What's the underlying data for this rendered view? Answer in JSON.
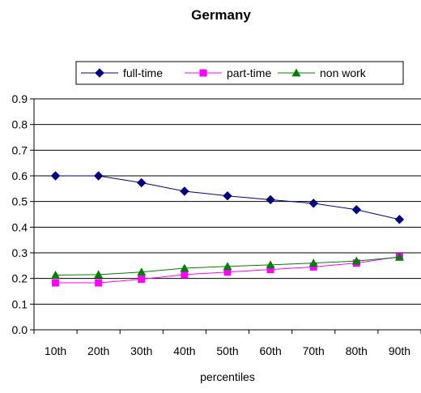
{
  "chart_data": {
    "type": "line",
    "title": "Germany",
    "xlabel": "percentiles",
    "ylabel": "",
    "categories": [
      "10th",
      "20th",
      "30th",
      "40th",
      "50th",
      "60th",
      "70th",
      "80th",
      "90th"
    ],
    "ylim": [
      0.0,
      0.9
    ],
    "yticks": [
      "0.0",
      "0.1",
      "0.2",
      "0.3",
      "0.4",
      "0.5",
      "0.6",
      "0.7",
      "0.8",
      "0.9"
    ],
    "grid": "horizontal",
    "legend_position": "top-right",
    "series": [
      {
        "name": "full-time",
        "color": "#000080",
        "marker": "diamond",
        "values": [
          0.6,
          0.6,
          0.573,
          0.54,
          0.522,
          0.507,
          0.493,
          0.468,
          0.43
        ]
      },
      {
        "name": "part-time",
        "color": "#ff00ff",
        "marker": "square",
        "values": [
          0.183,
          0.183,
          0.197,
          0.215,
          0.225,
          0.235,
          0.245,
          0.26,
          0.285
        ]
      },
      {
        "name": "non work",
        "color": "#008000",
        "marker": "triangle",
        "values": [
          0.213,
          0.215,
          0.225,
          0.24,
          0.247,
          0.253,
          0.26,
          0.268,
          0.283
        ]
      }
    ]
  }
}
